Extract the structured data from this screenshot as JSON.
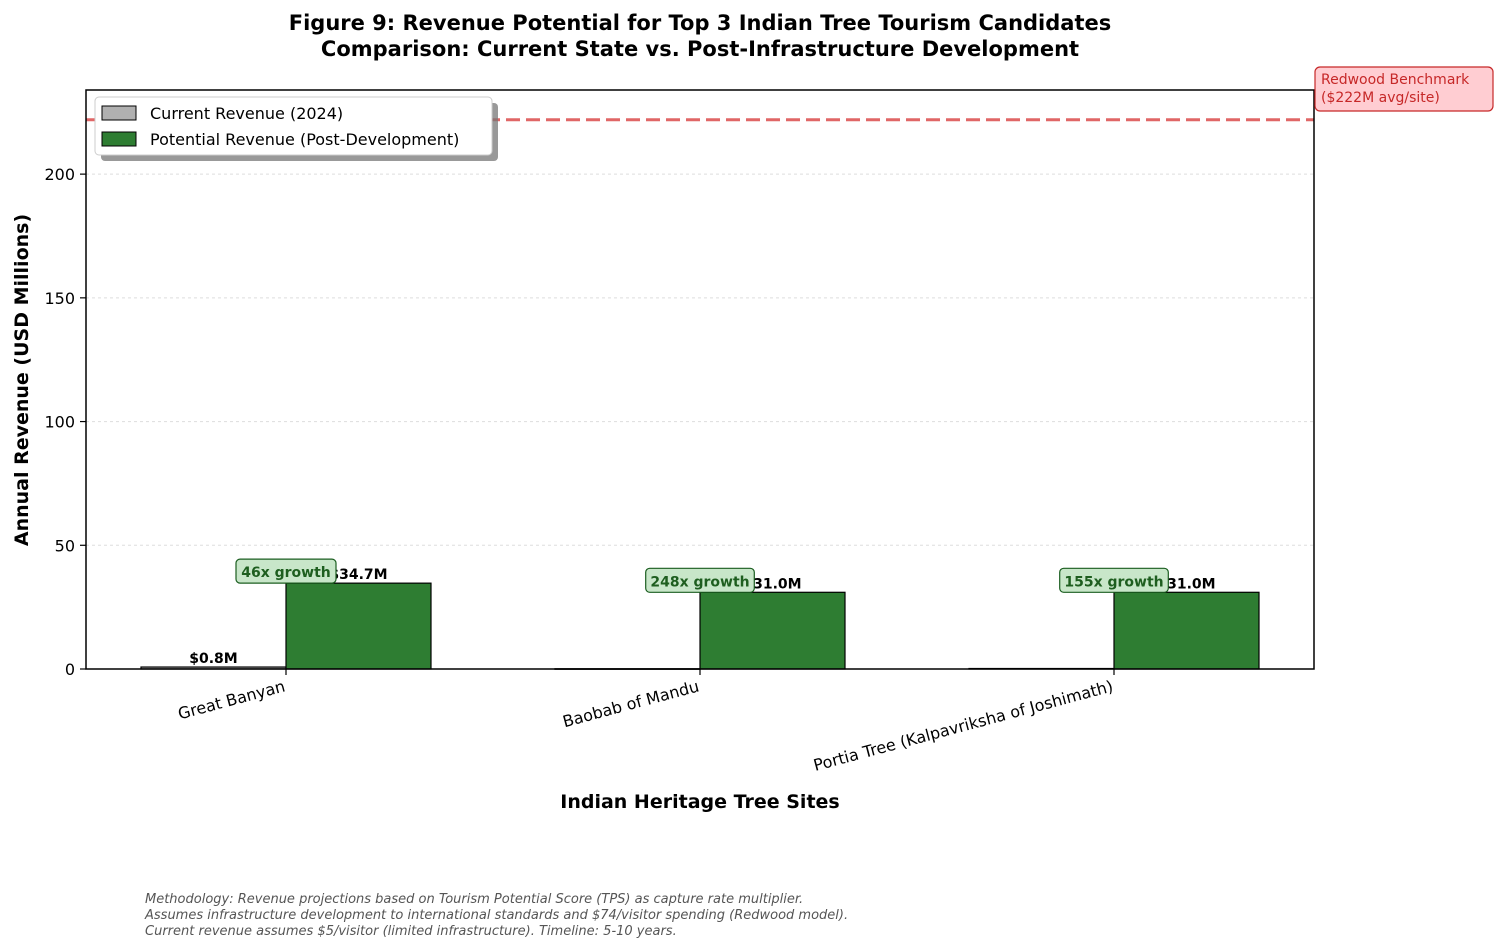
{
  "chart_data": {
    "type": "bar",
    "title": [
      "Figure 9: Revenue Potential for Top 3 Indian Tree Tourism Candidates",
      "Comparison: Current State vs. Post-Infrastructure Development"
    ],
    "xlabel": "Indian Heritage Tree Sites",
    "ylabel": "Annual Revenue (USD Millions)",
    "ylim": [
      0,
      234
    ],
    "yticks": [
      0,
      50,
      100,
      150,
      200
    ],
    "categories": [
      "Great Banyan",
      "Baobab of Mandu",
      "Portia Tree (Kalpavriksha of Joshimath)"
    ],
    "series": [
      {
        "name": "Current Revenue (2024)",
        "values": [
          0.8,
          0.1,
          0.2
        ],
        "color": "#b0b0b0",
        "labels": [
          "$0.8M",
          "",
          ""
        ]
      },
      {
        "name": "Potential Revenue (Post-Development)",
        "values": [
          34.7,
          31.0,
          31.0
        ],
        "color": "#2e7d32",
        "labels": [
          "$34.7M",
          "$31.0M",
          "$31.0M"
        ]
      }
    ],
    "growth_annotations": [
      "46x growth",
      "248x growth",
      "155x growth"
    ],
    "benchmark": {
      "value": 222,
      "label_line1": "Redwood Benchmark",
      "label_line2": "($222M avg/site)",
      "color": "#e06666"
    },
    "grid": "y",
    "legend_position": "top-left"
  },
  "footnote": [
    "Methodology: Revenue projections based on Tourism Potential Score (TPS) as capture rate multiplier.",
    "Assumes infrastructure development to international standards and $74/visitor spending (Redwood model).",
    "Current revenue assumes $5/visitor (limited infrastructure). Timeline: 5-10 years."
  ]
}
